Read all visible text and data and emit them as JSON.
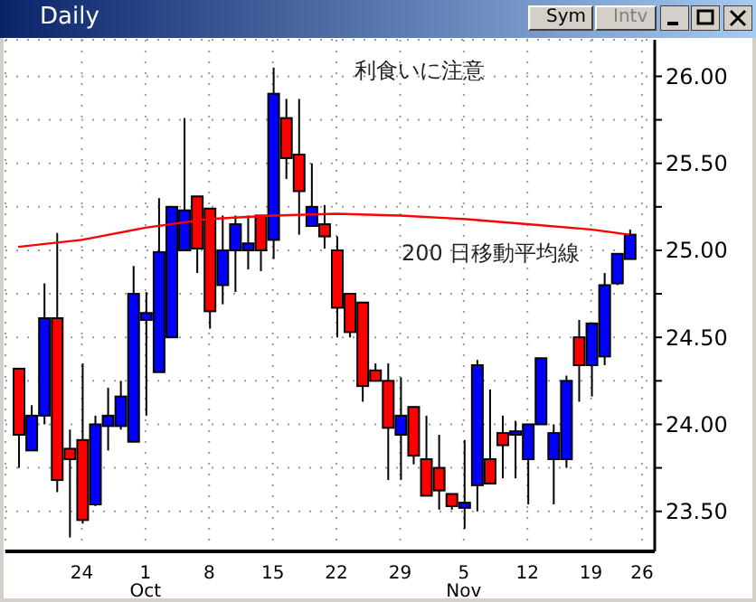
{
  "chart_data": {
    "type": "candlestick",
    "title": "Daily",
    "annotations": [
      "利食いに注意",
      "Sym",
      "Intv"
    ],
    "categories": [
      null,
      null,
      null,
      null,
      null,
      "24",
      null,
      null,
      null,
      null,
      "1 Oct",
      null,
      null,
      null,
      null,
      "8",
      null,
      null,
      null,
      null,
      "15",
      null,
      null,
      null,
      null,
      "22",
      null,
      null,
      null,
      null,
      "29",
      null,
      null,
      null,
      null,
      "5 Nov",
      null,
      null,
      null,
      null,
      "12",
      null,
      null,
      null,
      null,
      "19",
      null,
      null,
      null,
      "26"
    ],
    "ohlc": [
      [
        24.32,
        24.32,
        23.75,
        23.94
      ],
      [
        23.85,
        24.11,
        23.85,
        24.05
      ],
      [
        24.05,
        24.81,
        24.0,
        24.61
      ],
      [
        24.61,
        25.1,
        23.61,
        23.68
      ],
      [
        23.86,
        23.97,
        23.35,
        23.8
      ],
      [
        23.91,
        24.35,
        23.43,
        23.45
      ],
      [
        23.54,
        24.05,
        23.53,
        24.0
      ],
      [
        23.99,
        24.21,
        23.85,
        24.05
      ],
      [
        23.99,
        24.25,
        23.97,
        24.16
      ],
      [
        23.9,
        24.91,
        23.9,
        24.75
      ],
      [
        24.6,
        24.76,
        24.05,
        24.64
      ],
      [
        24.3,
        25.3,
        24.3,
        24.99
      ],
      [
        24.5,
        25.25,
        24.5,
        25.25
      ],
      [
        25.0,
        25.76,
        25.0,
        25.23
      ],
      [
        25.31,
        25.31,
        24.87,
        25.01
      ],
      [
        25.24,
        25.24,
        24.55,
        24.65
      ],
      [
        24.8,
        25.2,
        24.69,
        25.0
      ],
      [
        25.0,
        25.2,
        24.76,
        25.15
      ],
      [
        25.0,
        25.2,
        24.89,
        25.04
      ],
      [
        25.2,
        25.2,
        24.88,
        25.0
      ],
      [
        25.06,
        26.05,
        24.95,
        25.9
      ],
      [
        25.76,
        25.87,
        25.41,
        25.53
      ],
      [
        25.55,
        25.87,
        25.09,
        25.34
      ],
      [
        25.14,
        25.5,
        25.14,
        25.25
      ],
      [
        25.15,
        25.26,
        25.01,
        25.08
      ],
      [
        25.0,
        25.08,
        24.5,
        24.67
      ],
      [
        24.75,
        24.75,
        24.5,
        24.53
      ],
      [
        24.7,
        24.7,
        24.13,
        24.22
      ],
      [
        24.31,
        24.35,
        24.25,
        24.25
      ],
      [
        24.25,
        24.35,
        23.68,
        23.98
      ],
      [
        23.94,
        24.27,
        23.68,
        24.05
      ],
      [
        24.1,
        24.1,
        23.77,
        23.82
      ],
      [
        23.8,
        24.05,
        23.59,
        23.59
      ],
      [
        23.75,
        23.94,
        23.51,
        23.62
      ],
      [
        23.6,
        23.6,
        23.51,
        23.53
      ],
      [
        23.52,
        23.91,
        23.4,
        23.55
      ],
      [
        23.65,
        24.37,
        23.5,
        24.34
      ],
      [
        23.8,
        24.2,
        23.66,
        23.66
      ],
      [
        23.95,
        24.05,
        23.69,
        23.88
      ],
      [
        23.94,
        24.02,
        23.69,
        23.96
      ],
      [
        23.8,
        24.0,
        23.54,
        24.0
      ],
      [
        24.0,
        24.38,
        24.0,
        24.38
      ],
      [
        23.8,
        24.0,
        23.54,
        23.95
      ],
      [
        23.8,
        24.28,
        23.75,
        24.25
      ],
      [
        24.5,
        24.6,
        24.13,
        24.34
      ],
      [
        24.34,
        24.58,
        24.16,
        24.58
      ],
      [
        24.39,
        24.87,
        24.34,
        24.8
      ],
      [
        24.81,
        24.98,
        24.8,
        24.98
      ],
      [
        24.95,
        25.12,
        24.95,
        25.09
      ],
      null
    ],
    "colors": [
      "#ff0000",
      "#0000ff",
      "#0000ff",
      "#ff0000",
      "#ff0000",
      "#ff0000",
      "#0000ff",
      "#0000ff",
      "#0000ff",
      "#0000ff",
      "#0000ff",
      "#0000ff",
      "#0000ff",
      "#0000ff",
      "#ff0000",
      "#ff0000",
      "#0000ff",
      "#0000ff",
      "#0000ff",
      "#ff0000",
      "#0000ff",
      "#ff0000",
      "#ff0000",
      "#0000ff",
      "#ff0000",
      "#ff0000",
      "#ff0000",
      "#ff0000",
      "#ff0000",
      "#ff0000",
      "#0000ff",
      "#ff0000",
      "#ff0000",
      "#ff0000",
      "#ff0000",
      "#0000ff",
      "#0000ff",
      "#ff0000",
      "#ff0000",
      "#0000ff",
      "#0000ff",
      "#0000ff",
      "#0000ff",
      "#0000ff",
      "#ff0000",
      "#0000ff",
      "#0000ff",
      "#0000ff",
      "#0000ff",
      null
    ],
    "series": [
      {
        "type": "line",
        "name": "200 日移動平均線",
        "color": "#ff0000",
        "values": [
          25.02,
          null,
          null,
          null,
          null,
          25.06,
          null,
          null,
          null,
          null,
          25.13,
          null,
          null,
          null,
          null,
          25.18,
          null,
          null,
          null,
          null,
          25.2,
          null,
          null,
          null,
          null,
          25.21,
          null,
          null,
          null,
          null,
          25.2,
          null,
          null,
          null,
          null,
          25.18,
          null,
          null,
          null,
          null,
          25.15,
          null,
          null,
          null,
          null,
          25.12,
          null,
          null,
          25.09,
          null
        ]
      }
    ],
    "ylim": [
      23.27,
      26.21
    ],
    "yticks": [
      {
        "value": 23.5,
        "label": "23.50"
      },
      {
        "value": 23.75,
        "label": null
      },
      {
        "value": 24,
        "label": "24.00"
      },
      {
        "value": 24.25,
        "label": null
      },
      {
        "value": 24.5,
        "label": "24.50"
      },
      {
        "value": 24.75,
        "label": null
      },
      {
        "value": 25,
        "label": "25.00"
      },
      {
        "value": 25.25,
        "label": null
      },
      {
        "value": 25.5,
        "label": "25.50"
      },
      {
        "value": 25.75,
        "label": null
      },
      {
        "value": 26,
        "label": "26.00"
      }
    ],
    "grid": true
  }
}
